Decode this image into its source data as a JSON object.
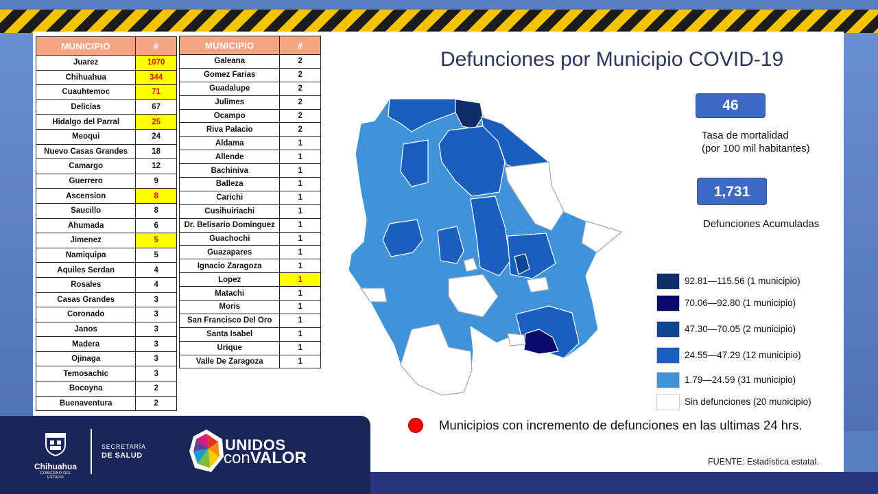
{
  "header": {
    "title": "Defunciones por Municipio COVID-19"
  },
  "table_left": {
    "col_municipio": "MUNICIPIO",
    "col_count": "#",
    "rows": [
      {
        "name": "Juarez",
        "count": "1070",
        "highlight": true
      },
      {
        "name": "Chihuahua",
        "count": "344",
        "highlight": true
      },
      {
        "name": "Cuauhtemoc",
        "count": "71",
        "highlight": true
      },
      {
        "name": "Delicias",
        "count": "67",
        "highlight": false
      },
      {
        "name": "Hidalgo del Parral",
        "count": "25",
        "highlight": true
      },
      {
        "name": "Meoqui",
        "count": "24",
        "highlight": false
      },
      {
        "name": "Nuevo Casas Grandes",
        "count": "18",
        "highlight": false
      },
      {
        "name": "Camargo",
        "count": "12",
        "highlight": false
      },
      {
        "name": "Guerrero",
        "count": "9",
        "highlight": false
      },
      {
        "name": "Ascension",
        "count": "8",
        "highlight": true
      },
      {
        "name": "Saucillo",
        "count": "8",
        "highlight": false
      },
      {
        "name": "Ahumada",
        "count": "6",
        "highlight": false
      },
      {
        "name": "Jimenez",
        "count": "5",
        "highlight": true
      },
      {
        "name": "Namiquipa",
        "count": "5",
        "highlight": false
      },
      {
        "name": "Aquiles Serdan",
        "count": "4",
        "highlight": false
      },
      {
        "name": "Rosales",
        "count": "4",
        "highlight": false
      },
      {
        "name": "Casas Grandes",
        "count": "3",
        "highlight": false
      },
      {
        "name": "Coronado",
        "count": "3",
        "highlight": false
      },
      {
        "name": "Janos",
        "count": "3",
        "highlight": false
      },
      {
        "name": "Madera",
        "count": "3",
        "highlight": false
      },
      {
        "name": "Ojinaga",
        "count": "3",
        "highlight": false
      },
      {
        "name": "Temosachic",
        "count": "3",
        "highlight": false
      },
      {
        "name": "Bocoyna",
        "count": "2",
        "highlight": false
      },
      {
        "name": "Buenaventura",
        "count": "2",
        "highlight": false
      }
    ]
  },
  "table_right": {
    "col_municipio": "MUNICIPIO",
    "col_count": "#",
    "rows": [
      {
        "name": "Galeana",
        "count": "2",
        "highlight": false
      },
      {
        "name": "Gomez Farias",
        "count": "2",
        "highlight": false
      },
      {
        "name": "Guadalupe",
        "count": "2",
        "highlight": false
      },
      {
        "name": "Julimes",
        "count": "2",
        "highlight": false
      },
      {
        "name": "Ocampo",
        "count": "2",
        "highlight": false
      },
      {
        "name": "Riva Palacio",
        "count": "2",
        "highlight": false
      },
      {
        "name": "Aldama",
        "count": "1",
        "highlight": false
      },
      {
        "name": "Allende",
        "count": "1",
        "highlight": false
      },
      {
        "name": "Bachiniva",
        "count": "1",
        "highlight": false
      },
      {
        "name": "Balleza",
        "count": "1",
        "highlight": false
      },
      {
        "name": "Carichi",
        "count": "1",
        "highlight": false
      },
      {
        "name": "Cusihuiriachi",
        "count": "1",
        "highlight": false
      },
      {
        "name": "Dr. Belisario Dominguez",
        "count": "1",
        "highlight": false
      },
      {
        "name": "Guachochi",
        "count": "1",
        "highlight": false
      },
      {
        "name": "Guazapares",
        "count": "1",
        "highlight": false
      },
      {
        "name": "Ignacio Zaragoza",
        "count": "1",
        "highlight": false
      },
      {
        "name": "Lopez",
        "count": "1",
        "highlight": true
      },
      {
        "name": "Matachi",
        "count": "1",
        "highlight": false
      },
      {
        "name": "Moris",
        "count": "1",
        "highlight": false
      },
      {
        "name": "San Francisco Del Oro",
        "count": "1",
        "highlight": false
      },
      {
        "name": "Santa Isabel",
        "count": "1",
        "highlight": false
      },
      {
        "name": "Urique",
        "count": "1",
        "highlight": false
      },
      {
        "name": "Valle De Zaragoza",
        "count": "1",
        "highlight": false
      }
    ]
  },
  "stats": {
    "mortality_rate": "46",
    "mortality_label_1": "Tasa de mortalidad",
    "mortality_label_2": "(por 100 mil habitantes)",
    "total_deaths": "1,731",
    "total_label": "Defunciones Acumuladas"
  },
  "legend": [
    {
      "label": "92.81—115.56 (1 municipio)",
      "color": "#0d2e6b"
    },
    {
      "label": "70.06—92.80 (1 municipio)",
      "color": "#0a0a6e"
    },
    {
      "label": "47.30—70.05 (2 municipio)",
      "color": "#0e4592"
    },
    {
      "label": "24.55—47.29 (12 municipio)",
      "color": "#1a5fbf"
    },
    {
      "label": "1.79—24.59 (31 municipio)",
      "color": "#3f93d8"
    },
    {
      "label": "Sin defunciones (20 municipio)",
      "color": "#ffffff"
    }
  ],
  "note": {
    "increment_text": "Municipios con incremento de defunciones en las ultimas 24 hrs.",
    "marker_color": "#ff0000"
  },
  "source": "FUENTE:  Estadística estatal.",
  "footer": {
    "org_name": "Chihuahua",
    "org_sub": "GOBIERNO DEL ESTADO",
    "dept_label": "SECRETARÍA",
    "dept_name": "DE SALUD",
    "campaign_line1": "UNIDOS",
    "campaign_line2a": "con",
    "campaign_line2b": "VALOR"
  }
}
